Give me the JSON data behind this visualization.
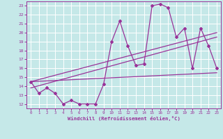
{
  "xlabel": "Windchill (Refroidissement éolien,°C)",
  "xlim": [
    -0.5,
    23.5
  ],
  "ylim": [
    11.5,
    23.5
  ],
  "yticks": [
    12,
    13,
    14,
    15,
    16,
    17,
    18,
    19,
    20,
    21,
    22,
    23
  ],
  "xticks": [
    0,
    1,
    2,
    3,
    4,
    5,
    6,
    7,
    8,
    9,
    10,
    11,
    12,
    13,
    14,
    15,
    16,
    17,
    18,
    19,
    20,
    21,
    22,
    23
  ],
  "bg_color": "#c5e8e8",
  "grid_color": "#ffffff",
  "line_color": "#993399",
  "line1_x": [
    0,
    1,
    2,
    3,
    4,
    5,
    6,
    7,
    8,
    9,
    10,
    11,
    12,
    13,
    14,
    15,
    16,
    17,
    18,
    19,
    20,
    21,
    22,
    23
  ],
  "line1_y": [
    14.5,
    13.2,
    13.8,
    13.2,
    12.0,
    12.4,
    12.0,
    12.0,
    12.0,
    14.2,
    19.0,
    21.3,
    18.5,
    16.3,
    16.5,
    23.0,
    23.2,
    22.8,
    19.5,
    20.5,
    16.0,
    20.5,
    18.5,
    16.0
  ],
  "line2_x": [
    0,
    23
  ],
  "line2_y": [
    14.5,
    15.5
  ],
  "line3_x": [
    0,
    23
  ],
  "line3_y": [
    14.5,
    20.0
  ],
  "line4_x": [
    0,
    23
  ],
  "line4_y": [
    13.8,
    19.5
  ]
}
